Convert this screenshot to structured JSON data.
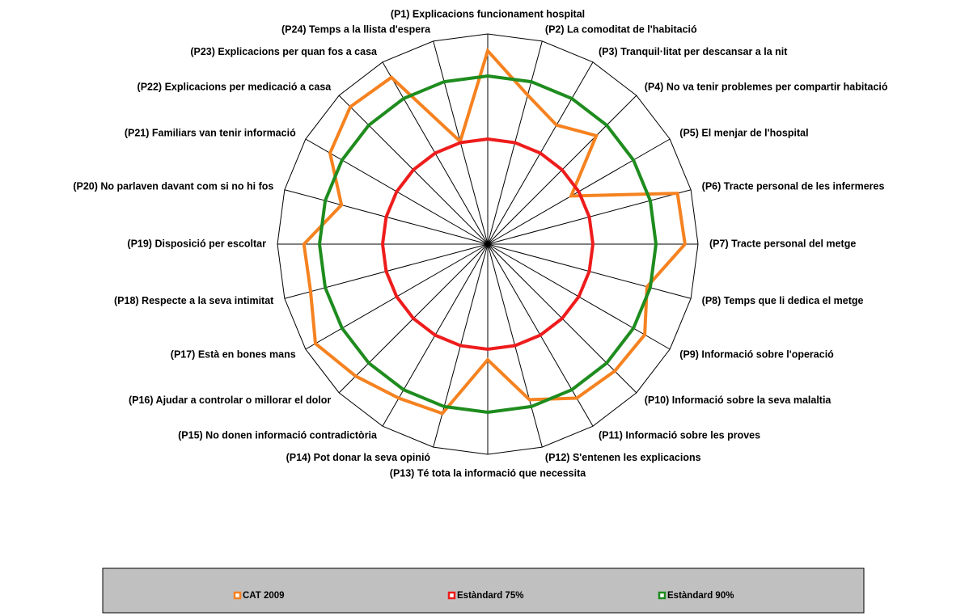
{
  "chart_data": {
    "type": "radar",
    "categories": [
      "(P1) Explicacions funcionament hospital",
      "(P2) La comoditat de l'habitació",
      "(P3) Tranquil·litat per descansar a la nit",
      "(P4) No va tenir problemes per compartir habitació",
      "(P5) El menjar de l'hospital",
      "(P6) Tracte personal de les infermeres",
      "(P7) Tracte personal del metge",
      "(P8) Temps que li dedica el metge",
      "(P9) Informació sobre l'operació",
      "(P10) Informació sobre la seva malaltia",
      "(P11) Informació sobre les proves",
      "(P12) S'entenen les explicacions",
      "(P13) Té tota la informació que necessita",
      "(P14) Pot donar la seva opinió",
      "(P15) No donen informació contradictòria",
      "(P16) Ajudar a controlar o millorar el dolor",
      "(P17) Està en bones mans",
      "(P18) Respecte a la seva intimitat",
      "(P19) Disposició per escoltar",
      "(P20) No parlaven davant com si no hi fos",
      "(P21) Familiars van tenir informació",
      "(P22) Explicacions per medicació a casa",
      "(P23) Explicacions per quan fos a casa",
      "(P24) Temps a la llista d'espera"
    ],
    "series": [
      {
        "name": "CAT 2009",
        "color": "#f58220",
        "values": [
          96.0,
          86.7,
          82.7,
          86.5,
          72.9,
          96.7,
          96.9,
          89.2,
          93.1,
          92.7,
          92.3,
          88.3,
          77.5,
          91.7,
          92.3,
          94.4,
          97.3,
          93.6,
          93.7,
          86.0,
          93.3,
          96.2,
          95.8,
          75.3
        ]
      },
      {
        "name": "Estàndard 75%",
        "color": "#ee1c1c",
        "values": [
          75,
          75,
          75,
          75,
          75,
          75,
          75,
          75,
          75,
          75,
          75,
          75,
          75,
          75,
          75,
          75,
          75,
          75,
          75,
          75,
          75,
          75,
          75,
          75
        ]
      },
      {
        "name": "Estàndard 90%",
        "color": "#1e8c1e",
        "values": [
          90,
          90,
          90,
          90,
          90,
          90,
          90,
          90,
          90,
          90,
          90,
          90,
          90,
          90,
          90,
          90,
          90,
          90,
          90,
          90,
          90,
          90,
          90,
          90
        ]
      }
    ],
    "rlim": [
      50,
      100
    ],
    "grid": true,
    "legend": "bottom"
  }
}
